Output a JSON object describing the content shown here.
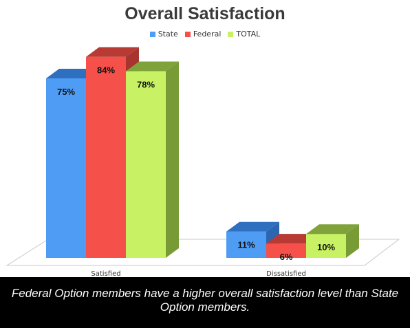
{
  "chart_data": {
    "type": "bar",
    "title": "Overall Satisfaction",
    "categories": [
      "Satisfied",
      "Dissatisfied"
    ],
    "series": [
      {
        "name": "State",
        "values": [
          75,
          11
        ],
        "labels": [
          "75%",
          "11%"
        ],
        "color": "#4f9cf5",
        "top_color": "#2f6fc0",
        "side_color": "#2d66b0"
      },
      {
        "name": "Federal",
        "values": [
          84,
          6
        ],
        "labels": [
          "84%",
          "6%"
        ],
        "color": "#f5504a",
        "top_color": "#b83a34",
        "side_color": "#a8342f"
      },
      {
        "name": "TOTAL",
        "values": [
          78,
          10
        ],
        "labels": [
          "78%",
          "10%"
        ],
        "color": "#c8f264",
        "top_color": "#7fa33a",
        "side_color": "#789b35"
      }
    ],
    "legend_position": "top",
    "grid": false,
    "ylim": [
      0,
      100
    ]
  },
  "caption": "Federal Option members have a higher overall satisfaction level than State Option members."
}
